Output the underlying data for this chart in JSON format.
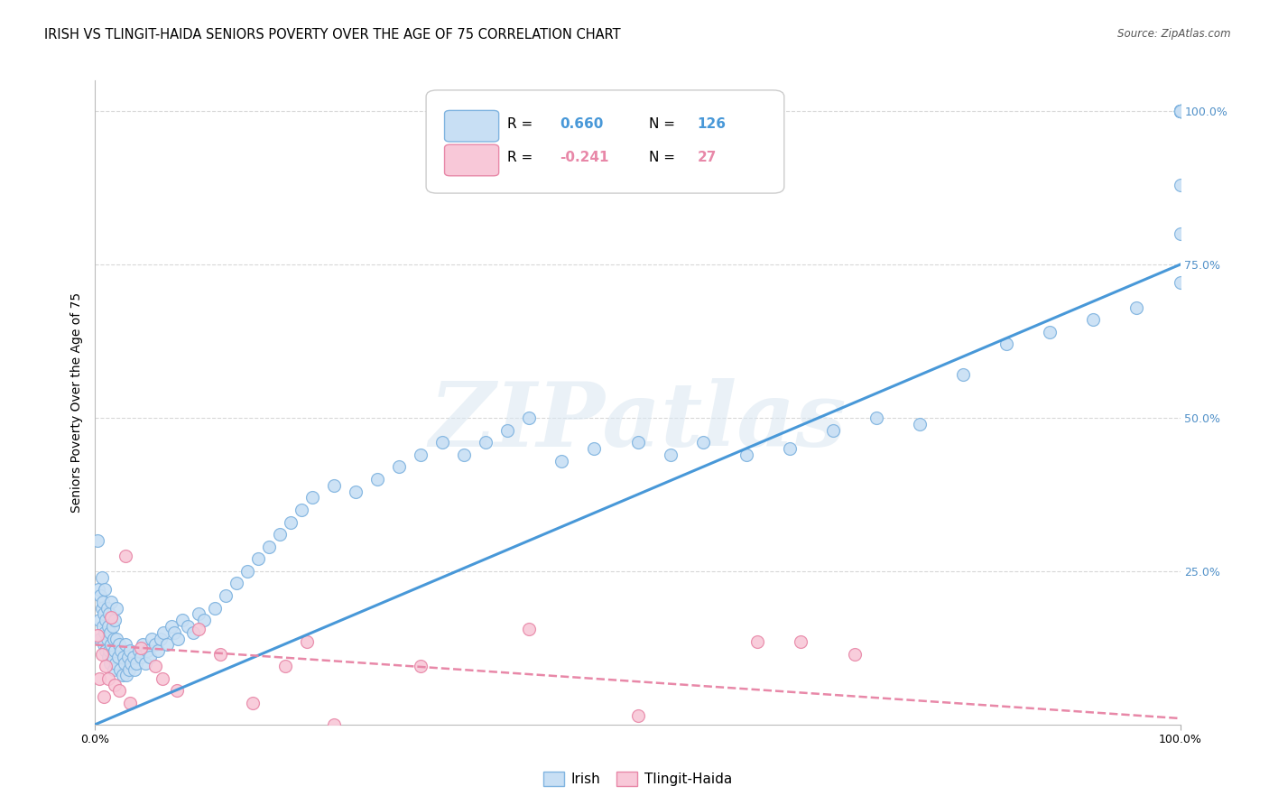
{
  "title": "IRISH VS TLINGIT-HAIDA SENIORS POVERTY OVER THE AGE OF 75 CORRELATION CHART",
  "source": "Source: ZipAtlas.com",
  "ylabel": "Seniors Poverty Over the Age of 75",
  "xlim": [
    0.0,
    1.0
  ],
  "ylim": [
    0.0,
    1.05
  ],
  "irish_color_face": "#c8dff4",
  "irish_color_edge": "#80b4e0",
  "tlingit_color_face": "#f8c8d8",
  "tlingit_color_edge": "#e888a8",
  "irish_line_color": "#4898d8",
  "tlingit_line_color": "#e888a8",
  "grid_color": "#d8d8d8",
  "right_label_color": "#5090c8",
  "irish_R": 0.66,
  "irish_N": 126,
  "tlingit_R": -0.241,
  "tlingit_N": 27,
  "ytick_positions": [
    0.25,
    0.5,
    0.75,
    1.0
  ],
  "ytick_labels_right": [
    "25.0%",
    "50.0%",
    "75.0%",
    "100.0%"
  ],
  "irish_scatter_x": [
    0.002,
    0.003,
    0.004,
    0.005,
    0.005,
    0.006,
    0.006,
    0.007,
    0.007,
    0.008,
    0.008,
    0.009,
    0.009,
    0.01,
    0.01,
    0.011,
    0.011,
    0.012,
    0.012,
    0.013,
    0.013,
    0.014,
    0.014,
    0.015,
    0.015,
    0.016,
    0.016,
    0.017,
    0.017,
    0.018,
    0.018,
    0.019,
    0.02,
    0.02,
    0.021,
    0.022,
    0.023,
    0.024,
    0.025,
    0.026,
    0.027,
    0.028,
    0.029,
    0.03,
    0.031,
    0.032,
    0.033,
    0.035,
    0.036,
    0.038,
    0.04,
    0.042,
    0.044,
    0.046,
    0.048,
    0.05,
    0.052,
    0.055,
    0.058,
    0.06,
    0.063,
    0.066,
    0.07,
    0.073,
    0.076,
    0.08,
    0.085,
    0.09,
    0.095,
    0.1,
    0.11,
    0.12,
    0.13,
    0.14,
    0.15,
    0.16,
    0.17,
    0.18,
    0.19,
    0.2,
    0.22,
    0.24,
    0.26,
    0.28,
    0.3,
    0.32,
    0.34,
    0.36,
    0.38,
    0.4,
    0.43,
    0.46,
    0.5,
    0.53,
    0.56,
    0.6,
    0.64,
    0.68,
    0.72,
    0.76,
    0.8,
    0.84,
    0.88,
    0.92,
    0.96,
    1.0,
    1.0,
    1.0,
    1.0,
    1.0,
    1.0,
    1.0,
    1.0,
    1.0,
    1.0,
    1.0,
    1.0,
    1.0,
    1.0,
    1.0,
    1.0,
    1.0,
    1.0,
    1.0,
    1.0,
    1.0
  ],
  "irish_scatter_y": [
    0.3,
    0.22,
    0.17,
    0.21,
    0.14,
    0.19,
    0.24,
    0.16,
    0.2,
    0.13,
    0.18,
    0.15,
    0.22,
    0.12,
    0.17,
    0.14,
    0.19,
    0.11,
    0.16,
    0.12,
    0.18,
    0.1,
    0.15,
    0.13,
    0.2,
    0.11,
    0.16,
    0.09,
    0.14,
    0.12,
    0.17,
    0.1,
    0.14,
    0.19,
    0.11,
    0.13,
    0.09,
    0.12,
    0.08,
    0.11,
    0.1,
    0.13,
    0.08,
    0.11,
    0.09,
    0.12,
    0.1,
    0.11,
    0.09,
    0.1,
    0.12,
    0.11,
    0.13,
    0.1,
    0.12,
    0.11,
    0.14,
    0.13,
    0.12,
    0.14,
    0.15,
    0.13,
    0.16,
    0.15,
    0.14,
    0.17,
    0.16,
    0.15,
    0.18,
    0.17,
    0.19,
    0.21,
    0.23,
    0.25,
    0.27,
    0.29,
    0.31,
    0.33,
    0.35,
    0.37,
    0.39,
    0.38,
    0.4,
    0.42,
    0.44,
    0.46,
    0.44,
    0.46,
    0.48,
    0.5,
    0.43,
    0.45,
    0.46,
    0.44,
    0.46,
    0.44,
    0.45,
    0.48,
    0.5,
    0.49,
    0.57,
    0.62,
    0.64,
    0.66,
    0.68,
    0.72,
    0.8,
    0.88,
    1.0,
    1.0,
    1.0,
    1.0,
    1.0,
    1.0,
    1.0,
    1.0,
    1.0,
    1.0,
    1.0,
    1.0,
    1.0,
    1.0,
    1.0,
    1.0,
    1.0,
    1.0
  ],
  "tlingit_scatter_x": [
    0.002,
    0.004,
    0.006,
    0.008,
    0.01,
    0.012,
    0.015,
    0.018,
    0.022,
    0.028,
    0.032,
    0.042,
    0.055,
    0.062,
    0.075,
    0.095,
    0.115,
    0.145,
    0.175,
    0.195,
    0.22,
    0.3,
    0.4,
    0.5,
    0.61,
    0.65,
    0.7
  ],
  "tlingit_scatter_y": [
    0.145,
    0.075,
    0.115,
    0.045,
    0.095,
    0.075,
    0.175,
    0.065,
    0.055,
    0.275,
    0.035,
    0.125,
    0.095,
    0.075,
    0.055,
    0.155,
    0.115,
    0.035,
    0.095,
    0.135,
    0.0,
    0.095,
    0.155,
    0.015,
    0.135,
    0.135,
    0.115
  ],
  "watermark_text": "ZIPatlas",
  "legend_irish_label": "Irish",
  "legend_tlingit_label": "Tlingit-Haida",
  "background_color": "#ffffff"
}
